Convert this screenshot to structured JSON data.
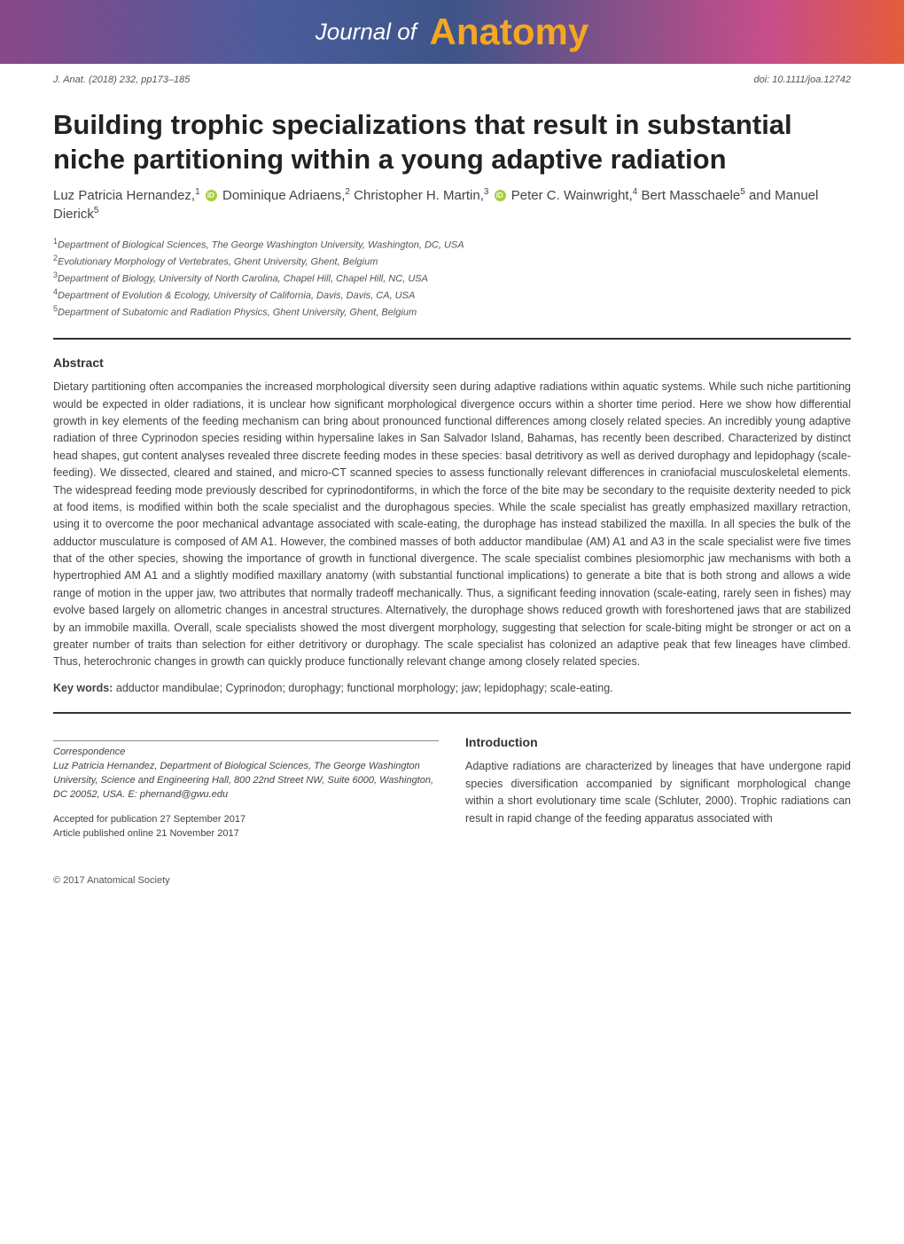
{
  "banner": {
    "journal_of": "Journal of",
    "anatomy": "Anatomy"
  },
  "meta": {
    "citation": "J. Anat. (2018) 232, pp173–185",
    "doi": "doi: 10.1111/joa.12742"
  },
  "article": {
    "title": "Building trophic specializations that result in substantial niche partitioning within a young adaptive radiation",
    "authors": [
      {
        "name": "Luz Patricia Hernandez,",
        "sup": "1",
        "orcid": true
      },
      {
        "name": " Dominique Adriaens,",
        "sup": "2",
        "orcid": false
      },
      {
        "name": " Christopher H. Martin,",
        "sup": "3",
        "orcid": true
      },
      {
        "name": " Peter C. Wainwright,",
        "sup": "4",
        "orcid": false
      },
      {
        "name": " Bert Masschaele",
        "sup": "5",
        "orcid": false
      },
      {
        "name": " and Manuel Dierick",
        "sup": "5",
        "orcid": false
      }
    ],
    "affiliations": [
      {
        "sup": "1",
        "text": "Department of Biological Sciences, The George Washington University, Washington, DC, USA"
      },
      {
        "sup": "2",
        "text": "Evolutionary Morphology of Vertebrates, Ghent University, Ghent, Belgium"
      },
      {
        "sup": "3",
        "text": "Department of Biology, University of North Carolina, Chapel Hill, Chapel Hill, NC, USA"
      },
      {
        "sup": "4",
        "text": "Department of Evolution & Ecology, University of California, Davis, Davis, CA, USA"
      },
      {
        "sup": "5",
        "text": "Department of Subatomic and Radiation Physics, Ghent University, Ghent, Belgium"
      }
    ]
  },
  "abstract": {
    "heading": "Abstract",
    "body": "Dietary partitioning often accompanies the increased morphological diversity seen during adaptive radiations within aquatic systems. While such niche partitioning would be expected in older radiations, it is unclear how significant morphological divergence occurs within a shorter time period. Here we show how differential growth in key elements of the feeding mechanism can bring about pronounced functional differences among closely related species. An incredibly young adaptive radiation of three Cyprinodon species residing within hypersaline lakes in San Salvador Island, Bahamas, has recently been described. Characterized by distinct head shapes, gut content analyses revealed three discrete feeding modes in these species: basal detritivory as well as derived durophagy and lepidophagy (scale-feeding). We dissected, cleared and stained, and micro-CT scanned species to assess functionally relevant differences in craniofacial musculoskeletal elements. The widespread feeding mode previously described for cyprinodontiforms, in which the force of the bite may be secondary to the requisite dexterity needed to pick at food items, is modified within both the scale specialist and the durophagous species. While the scale specialist has greatly emphasized maxillary retraction, using it to overcome the poor mechanical advantage associated with scale-eating, the durophage has instead stabilized the maxilla. In all species the bulk of the adductor musculature is composed of AM A1. However, the combined masses of both adductor mandibulae (AM) A1 and A3 in the scale specialist were five times that of the other species, showing the importance of growth in functional divergence. The scale specialist combines plesiomorphic jaw mechanisms with both a hypertrophied AM A1 and a slightly modified maxillary anatomy (with substantial functional implications) to generate a bite that is both strong and allows a wide range of motion in the upper jaw, two attributes that normally tradeoff mechanically. Thus, a significant feeding innovation (scale-eating, rarely seen in fishes) may evolve based largely on allometric changes in ancestral structures. Alternatively, the durophage shows reduced growth with foreshortened jaws that are stabilized by an immobile maxilla. Overall, scale specialists showed the most divergent morphology, suggesting that selection for scale-biting might be stronger or act on a greater number of traits than selection for either detritivory or durophagy. The scale specialist has colonized an adaptive peak that few lineages have climbed. Thus, heterochronic changes in growth can quickly produce functionally relevant change among closely related species.",
    "keywords_label": "Key words:",
    "keywords": " adductor mandibulae; Cyprinodon; durophagy; functional morphology; jaw; lepidophagy; scale-eating."
  },
  "correspondence": {
    "heading": "Correspondence",
    "text": "Luz Patricia Hernandez, Department of Biological Sciences, The George Washington University, Science and Engineering Hall, 800 22nd Street NW, Suite 6000, Washington, DC 20052, USA. E: phernand@gwu.edu",
    "accepted": "Accepted for publication 27 September 2017",
    "published": "Article published online 21 November 2017"
  },
  "introduction": {
    "heading": "Introduction",
    "text": "Adaptive radiations are characterized by lineages that have undergone rapid species diversification accompanied by significant morphological change within a short evolutionary time scale (Schluter, 2000). Trophic radiations can result in rapid change of the feeding apparatus associated with"
  },
  "footer": {
    "copyright": "© 2017 Anatomical Society"
  }
}
